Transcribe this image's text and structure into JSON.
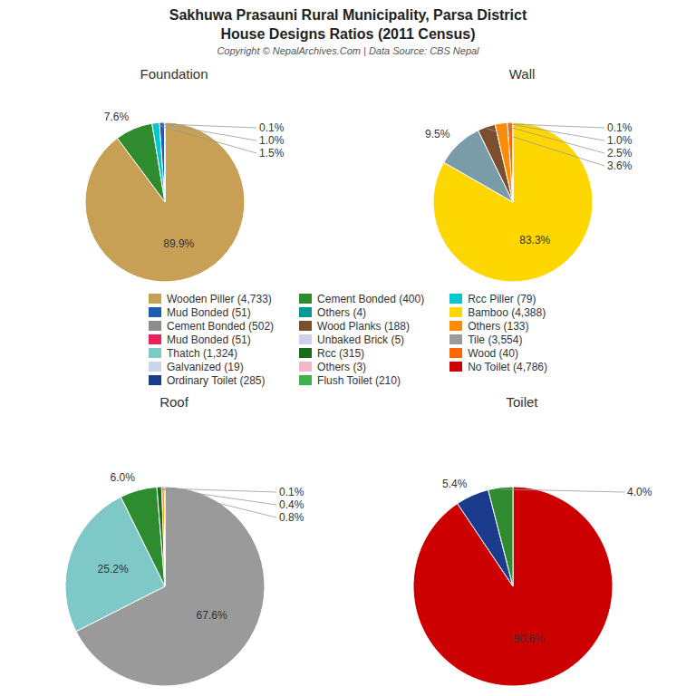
{
  "title": "Sakhuwa Prasauni Rural Municipality, Parsa District",
  "subtitle": "House Designs Ratios (2011 Census)",
  "annotations": [
    "Copyright © NepalArchives.Com | Data Source: CBS Nepal"
  ],
  "series": [
    {
      "name": "Wooden Piller (4,733)",
      "color": "#C8A055"
    },
    {
      "name": "Mud Bonded (51)",
      "color": "#1E5CB0"
    },
    {
      "name": "Cement Bonded (502)",
      "color": "#8C8C8C"
    },
    {
      "name": "Mud Bonded (51)",
      "color": "#E8225A"
    },
    {
      "name": "Thatch (1,324)",
      "color": "#7EC8C8"
    },
    {
      "name": "Galvanized (19)",
      "color": "#C8D8E8"
    },
    {
      "name": "Ordinary Toilet (285)",
      "color": "#1A3A8C"
    },
    {
      "name": "Cement Bonded (400)",
      "color": "#2E8B2E"
    },
    {
      "name": "Others (4)",
      "color": "#009999"
    },
    {
      "name": "Wood Planks (188)",
      "color": "#7B4F2E"
    },
    {
      "name": "Unbaked Brick (5)",
      "color": "#D0D0E8"
    },
    {
      "name": "Rcc (315)",
      "color": "#1A6B1A"
    },
    {
      "name": "Others (3)",
      "color": "#F0B8C8"
    },
    {
      "name": "Flush Toilet (210)",
      "color": "#3CB34A"
    },
    {
      "name": "Rcc Piller (79)",
      "color": "#00C8D0"
    },
    {
      "name": "Bamboo (4,388)",
      "color": "#FFD700"
    },
    {
      "name": "Others (133)",
      "color": "#FF8C00"
    },
    {
      "name": "Tile (3,554)",
      "color": "#9A9A9A"
    },
    {
      "name": "Wood (40)",
      "color": "#FF6600"
    },
    {
      "name": "No Toilet (4,786)",
      "color": "#CC0000"
    }
  ],
  "chart_data": [
    {
      "type": "pie",
      "title": "Foundation",
      "values": [
        89.9,
        7.6,
        1.5,
        1.0,
        0.1
      ],
      "value_labels": [
        "89.9%",
        "7.6%",
        "1.5%",
        "1.0%",
        "0.1%"
      ],
      "colors": [
        "#C8A055",
        "#2E8B2E",
        "#00C8D0",
        "#1E5CB0",
        "#8C8C8C"
      ],
      "data_labels": true
    },
    {
      "type": "pie",
      "title": "Wall",
      "values": [
        83.3,
        9.5,
        3.6,
        2.5,
        1.0,
        0.1
      ],
      "value_labels": [
        "83.3%",
        "9.5%",
        "3.6%",
        "2.5%",
        "1.0%",
        "0.1%"
      ],
      "colors": [
        "#FFD700",
        "#7A9BA8",
        "#7B4F2E",
        "#FF8C00",
        "#FF6600",
        "#E8225A"
      ],
      "data_labels": true
    },
    {
      "type": "pie",
      "title": "Roof",
      "values": [
        67.6,
        25.2,
        6.0,
        0.8,
        0.4,
        0.1
      ],
      "value_labels": [
        "67.6%",
        "25.2%",
        "6.0%",
        "0.8%",
        "0.4%",
        "0.1%"
      ],
      "colors": [
        "#9A9A9A",
        "#7EC8C8",
        "#2E8B2E",
        "#1A6B1A",
        "#FF8C00",
        "#B0C8E8"
      ],
      "data_labels": true
    },
    {
      "type": "pie",
      "title": "Toilet",
      "values": [
        90.6,
        5.4,
        4.0
      ],
      "value_labels": [
        "90.6%",
        "5.4%",
        "4.0%"
      ],
      "colors": [
        "#CC0000",
        "#1A3A8C",
        "#2E8B2E"
      ],
      "data_labels": true
    }
  ]
}
